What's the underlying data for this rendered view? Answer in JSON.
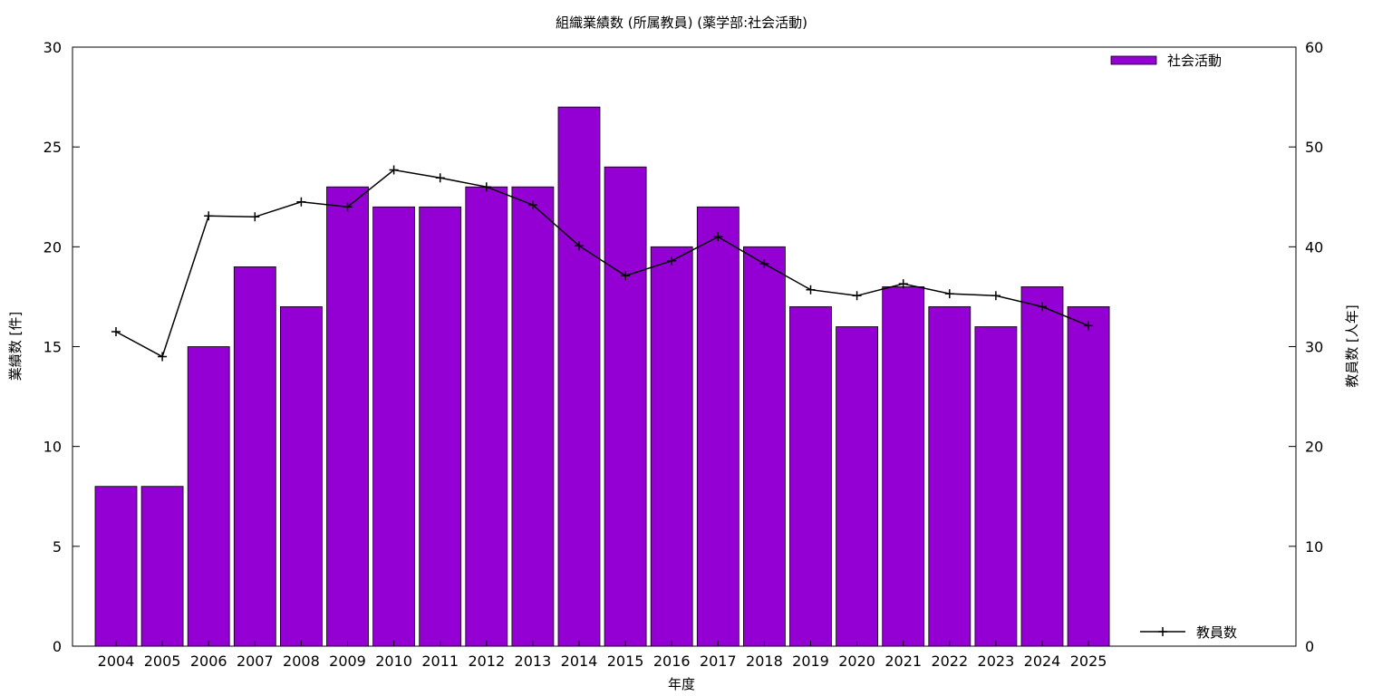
{
  "chart_data": {
    "type": "bar",
    "title": "組織業績数 (所属教員) (薬学部:社会活動)",
    "xlabel": "年度",
    "ylabel": "業績数 [件]",
    "y2label": "教員数 [人年]",
    "ylim": [
      0,
      30
    ],
    "y2lim": [
      0,
      60
    ],
    "yticks": [
      0,
      5,
      10,
      15,
      20,
      25,
      30
    ],
    "y2ticks": [
      0,
      10,
      20,
      30,
      40,
      50,
      60
    ],
    "categories": [
      "2004",
      "2005",
      "2006",
      "2007",
      "2008",
      "2009",
      "2010",
      "2011",
      "2012",
      "2013",
      "2014",
      "2015",
      "2016",
      "2017",
      "2018",
      "2019",
      "2020",
      "2021",
      "2022",
      "2023",
      "2024",
      "2025"
    ],
    "series": [
      {
        "name": "社会活動",
        "type": "bar",
        "axis": "left",
        "color": "#9400d3",
        "values": [
          8,
          8,
          15,
          19,
          17,
          23,
          22,
          22,
          23,
          23,
          27,
          24,
          20,
          22,
          20,
          17,
          16,
          18,
          17,
          16,
          18,
          17
        ]
      },
      {
        "name": "教員数",
        "type": "line",
        "axis": "right",
        "color": "#000000",
        "values": [
          31.5,
          29.0,
          43.1,
          43.0,
          44.5,
          44.0,
          47.7,
          46.9,
          46.0,
          44.2,
          40.1,
          37.1,
          38.6,
          41.0,
          38.3,
          35.7,
          35.1,
          36.3,
          35.3,
          35.1,
          34.0,
          32.1
        ]
      }
    ],
    "grid": false,
    "legend": [
      "top-right",
      "bottom-right"
    ]
  }
}
